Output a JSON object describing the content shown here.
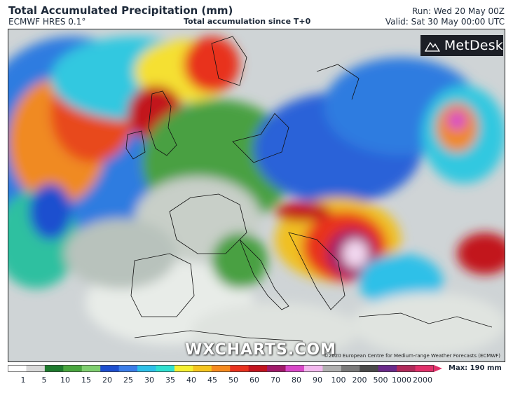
{
  "header": {
    "title": "Total Accumulated Precipitation (mm)",
    "model": "ECMWF HRES 0.1°",
    "subtitle": "Total accumulation since T+0",
    "run": "Run: Wed 20 May 00Z",
    "valid": "Valid: Sat 30 May 00:00 UTC"
  },
  "branding": {
    "logo_text": "MetDesk",
    "logo_icon": "mountain-logo-icon",
    "watermark": "WXCHARTS.COM",
    "copyright": "©2020 European Centre for Medium-range Weather Forecasts (ECMWF)"
  },
  "legend": {
    "ticks": [
      "1",
      "5",
      "10",
      "15",
      "20",
      "25",
      "30",
      "35",
      "40",
      "45",
      "50",
      "60",
      "70",
      "80",
      "90",
      "100",
      "200",
      "500",
      "1000",
      "2000"
    ],
    "max_label": "Max: 190 mm",
    "colors": [
      "#ffffff",
      "#d9d9d9",
      "#1e7a2e",
      "#49a63f",
      "#7fcf70",
      "#1e4fcf",
      "#3b7de8",
      "#2ec0e8",
      "#30e0d0",
      "#f5f032",
      "#f5c51f",
      "#f58a1f",
      "#e8321e",
      "#c2141e",
      "#a01a6a",
      "#d848c8",
      "#f2b8ee",
      "#b0b0b0",
      "#7a7a7a",
      "#4a4a4a",
      "#6a2a8a",
      "#b02a5a",
      "#e0306a"
    ]
  },
  "map": {
    "region": "Europe"
  }
}
